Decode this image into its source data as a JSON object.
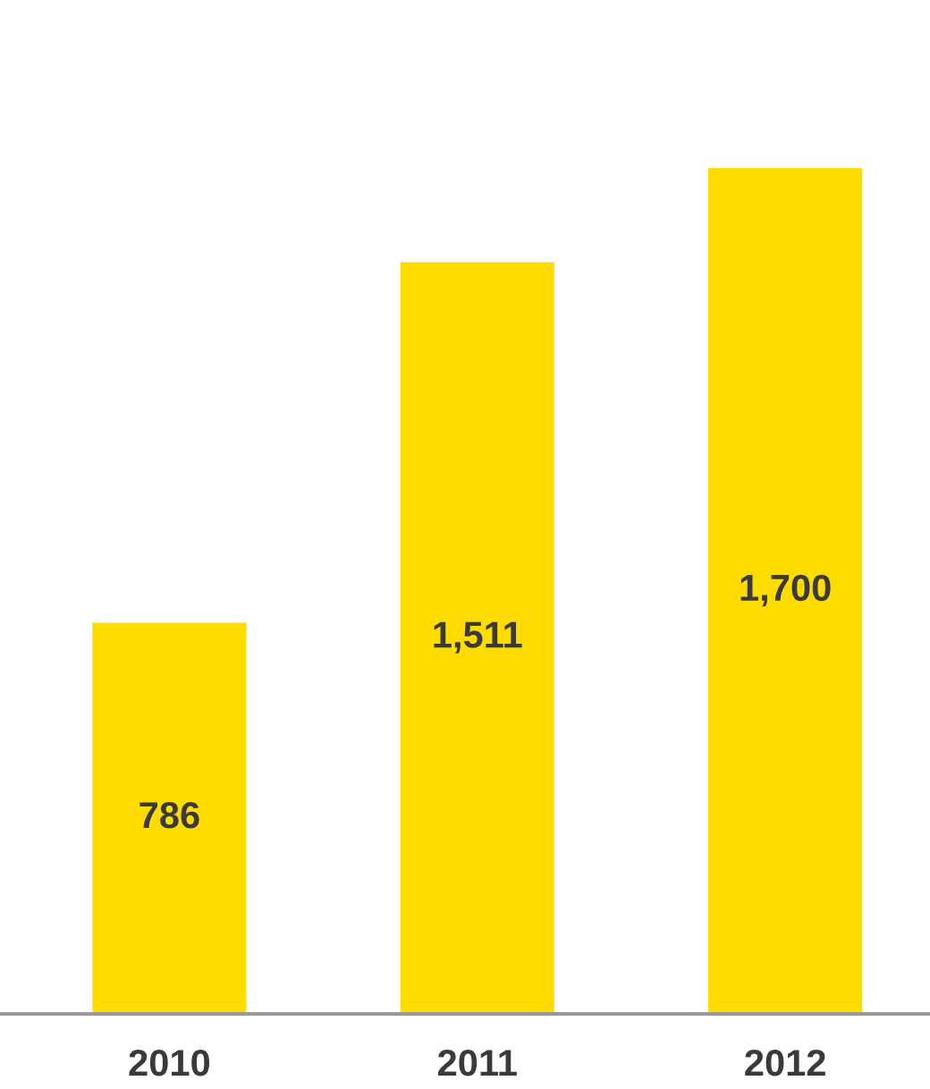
{
  "chart_data": {
    "type": "bar",
    "categories": [
      "2010",
      "2011",
      "2012"
    ],
    "values": [
      786,
      1511,
      1700
    ],
    "color": "#ffdc00",
    "value_labels": [
      "786",
      "1,511",
      "1,700"
    ]
  }
}
